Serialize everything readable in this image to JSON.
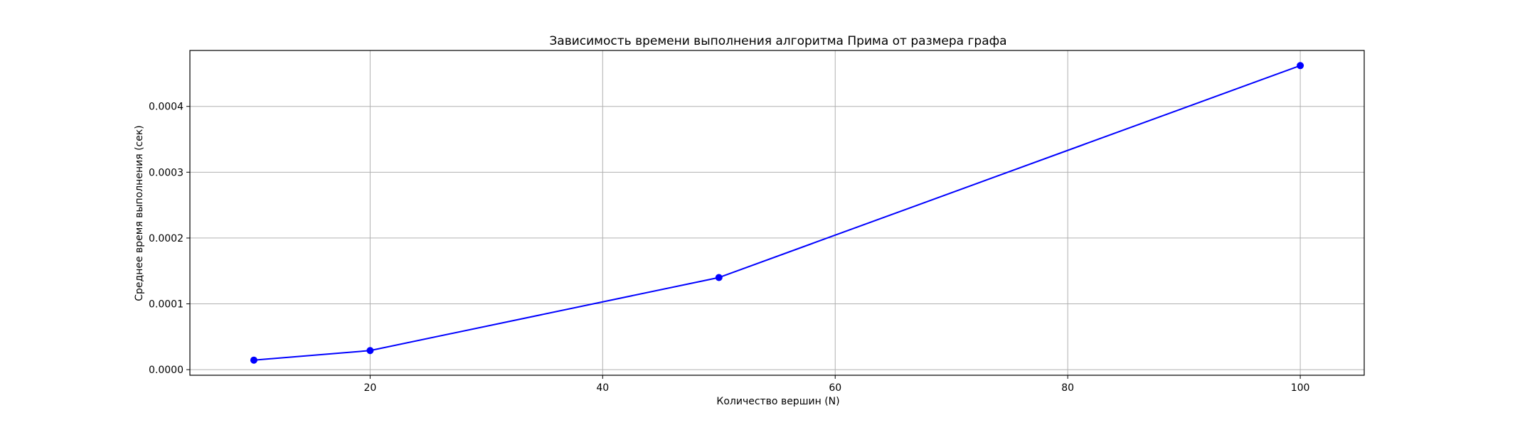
{
  "chart_data": {
    "type": "line",
    "title": "Зависимость времени выполнения алгоритма Прима от размера графа",
    "xlabel": "Количество вершин (N)",
    "ylabel": "Среднее время выполнения (сек)",
    "x": [
      10,
      20,
      50,
      100
    ],
    "series": [
      {
        "values": [
          1.45e-05,
          2.9e-05,
          0.00014,
          0.000462
        ],
        "color": "#0000ff",
        "marker": "circle"
      }
    ],
    "xlim": [
      4.5,
      105.5
    ],
    "ylim": [
      -8.5e-06,
      0.000485
    ],
    "xticks": [
      20,
      40,
      60,
      80,
      100
    ],
    "xtick_labels": [
      "20",
      "40",
      "60",
      "80",
      "100"
    ],
    "yticks": [
      0,
      0.0001,
      0.0002,
      0.0003,
      0.0004
    ],
    "ytick_labels": [
      "0.0000",
      "0.0001",
      "0.0002",
      "0.0003",
      "0.0004"
    ],
    "grid": true,
    "legend": false
  }
}
